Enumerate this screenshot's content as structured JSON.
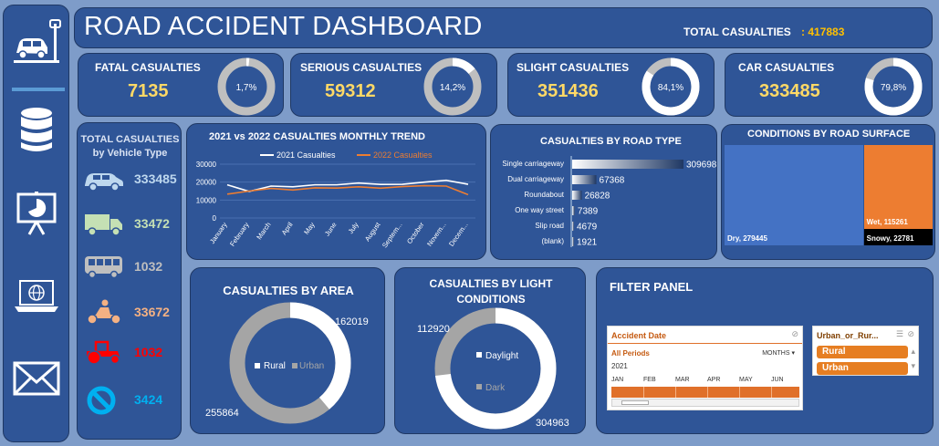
{
  "header": {
    "title": "ROAD ACCIDENT DASHBOARD",
    "total_label": "TOTAL CASUALTIES",
    "total_value": ": 417883"
  },
  "sidebar": {
    "icons": [
      "car-icon",
      "database-icon",
      "presentation-icon",
      "laptop-globe-icon",
      "mail-icon"
    ]
  },
  "kpis": [
    {
      "label": "FATAL CASUALTIES",
      "value": "7135",
      "pct": "1,7%",
      "fraction": 0.017
    },
    {
      "label": "SERIOUS CASUALTIES",
      "value": "59312",
      "pct": "14,2%",
      "fraction": 0.142
    },
    {
      "label": "SLIGHT CASUALTIES",
      "value": "351436",
      "pct": "84,1%",
      "fraction": 0.841
    },
    {
      "label": "CAR CASUALTIES",
      "value": "333485",
      "pct": "79,8%",
      "fraction": 0.798
    }
  ],
  "vehicle": {
    "title_line1": "TOTAL CASUALTIES",
    "title_line2": "by Vehicle Type",
    "items": [
      {
        "icon": "car-icon",
        "value": "333485",
        "color": "#bdd7ee"
      },
      {
        "icon": "truck-icon",
        "value": "33472",
        "color": "#c5e0b4"
      },
      {
        "icon": "bus-icon",
        "value": "1032",
        "color": "#bfbfbf"
      },
      {
        "icon": "motorcycle-icon",
        "value": "33672",
        "color": "#f4b183"
      },
      {
        "icon": "tractor-icon",
        "value": "1032",
        "color": "#ff0000"
      },
      {
        "icon": "prohibited-icon",
        "value": "3424",
        "color": "#00b0f0"
      }
    ]
  },
  "trend": {
    "title": "2021 vs 2022 CASUALTIES MONTHLY TREND",
    "legend_2021": "2021 Casualties",
    "legend_2022": "2022 Casualties"
  },
  "roadtype": {
    "title": "CASUALTIES BY ROAD TYPE"
  },
  "surface": {
    "title": "CONDITIONS BY ROAD SURFACE",
    "dry_label": "Dry, 279445",
    "wet_label": "Wet, 115261",
    "snowy_label": "Snowy, 22781"
  },
  "area": {
    "title": "CASUALTIES BY AREA",
    "legend_rural": "Rural",
    "legend_urban": "Urban",
    "rural_value": "162019",
    "urban_value": "255864"
  },
  "light": {
    "title_line1": "CASUALTIES BY LIGHT",
    "title_line2": "CONDITIONS",
    "legend_daylight": "Daylight",
    "legend_dark": "Dark",
    "dark_value": "112920",
    "daylight_value": "304963"
  },
  "filter": {
    "title": "FILTER PANEL",
    "date_slicer": {
      "header": "Accident Date",
      "period": "All Periods",
      "mode": "MONTHS",
      "year": "2021",
      "months": [
        "JAN",
        "FEB",
        "MAR",
        "APR",
        "MAY",
        "JUN"
      ]
    },
    "area_slicer": {
      "header": "Urban_or_Rur...",
      "options": [
        "Rural",
        "Urban"
      ]
    }
  },
  "colors": {
    "panel": "#2f5597",
    "accent_yellow": "#ffd966",
    "orange": "#ed7d31",
    "donut_track": "#bfbfbf"
  },
  "chart_data": [
    {
      "type": "line",
      "title": "2021 vs 2022 CASUALTIES MONTHLY TREND",
      "categories": [
        "January",
        "February",
        "March",
        "April",
        "May",
        "June",
        "July",
        "August",
        "Septem...",
        "October",
        "Novem...",
        "Decem..."
      ],
      "series": [
        {
          "name": "2021 Casualties",
          "color": "#ffffff",
          "values": [
            18500,
            14800,
            17800,
            17400,
            18500,
            18500,
            19500,
            18700,
            18800,
            20000,
            21000,
            18800
          ]
        },
        {
          "name": "2022 Casualties",
          "color": "#ed7d31",
          "values": [
            13300,
            15000,
            16500,
            15600,
            16800,
            16700,
            17400,
            16600,
            17500,
            18000,
            17800,
            13000
          ]
        }
      ],
      "ylim": [
        0,
        30000
      ],
      "yticks": [
        "0",
        "10000",
        "20000",
        "30000"
      ],
      "grid": true,
      "legend": "top"
    },
    {
      "type": "bar",
      "title": "CASUALTIES BY ROAD TYPE",
      "categories": [
        "Single carriageway",
        "Dual carriageway",
        "Roundabout",
        "One way street",
        "Slip road",
        "(blank)"
      ],
      "values": [
        309698,
        67368,
        26828,
        7389,
        4679,
        1921
      ],
      "orientation": "horizontal"
    },
    {
      "type": "heatmap",
      "title": "CONDITIONS BY ROAD SURFACE",
      "categories": [
        "Dry",
        "Wet",
        "Snowy"
      ],
      "values": [
        279445,
        115261,
        22781
      ],
      "colors": [
        "#4472c4",
        "#ed7d31",
        "#000000"
      ]
    },
    {
      "type": "pie",
      "title": "CASUALTIES BY AREA",
      "categories": [
        "Rural",
        "Urban"
      ],
      "values": [
        162019,
        255864
      ],
      "colors": [
        "#ffffff",
        "#a5a5a5"
      ]
    },
    {
      "type": "pie",
      "title": "CASUALTIES BY LIGHT CONDITIONS",
      "categories": [
        "Daylight",
        "Dark"
      ],
      "values": [
        304963,
        112920
      ],
      "colors": [
        "#ffffff",
        "#a5a5a5"
      ]
    }
  ]
}
